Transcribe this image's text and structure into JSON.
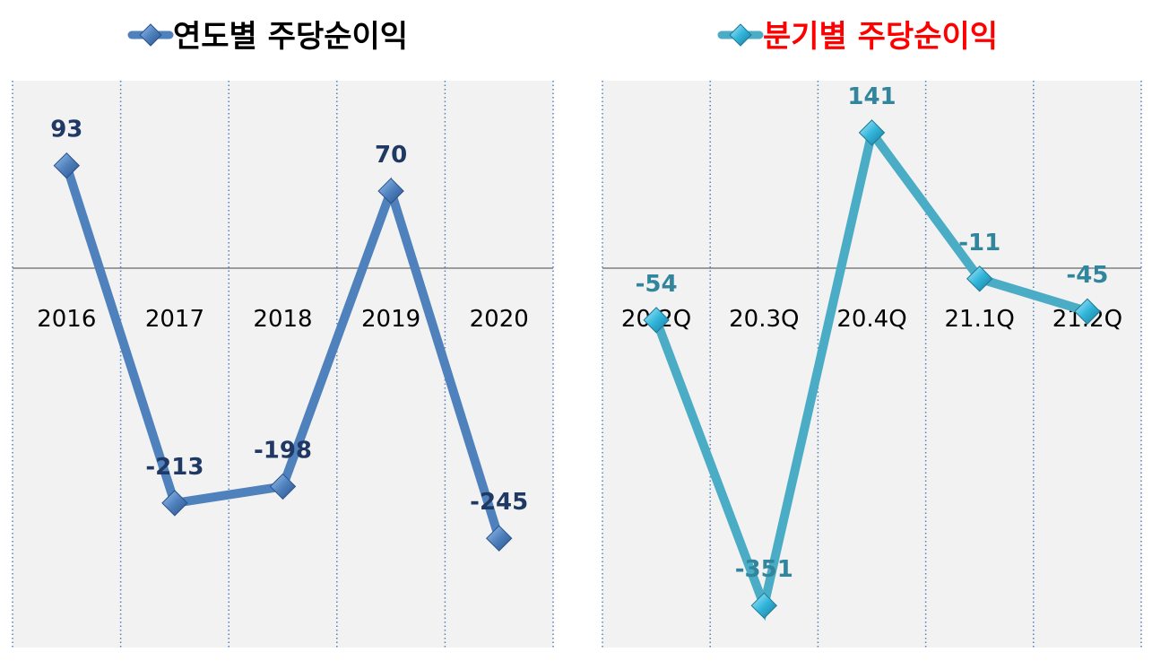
{
  "chart_data": [
    {
      "type": "line",
      "title": "연도별 주당순이익",
      "categories": [
        "2016",
        "2017",
        "2018",
        "2019",
        "2020"
      ],
      "series": [
        {
          "name": "연도별 주당순이익",
          "values": [
            93,
            -213,
            -198,
            70,
            -245
          ]
        }
      ],
      "data_labels": [
        "93",
        "-213",
        "-198",
        "70",
        "-245"
      ],
      "ylim": [
        -320,
        170
      ],
      "grid": "vertical-dotted",
      "legend_position": "top",
      "line_color": "#4F81BD",
      "marker_color": "#4F81BD",
      "label_color": "#1F3864",
      "title_color": "#000000"
    },
    {
      "type": "line",
      "title": "분기별 주당순이익",
      "categories": [
        "20.2Q",
        "20.3Q",
        "20.4Q",
        "21.1Q",
        "21.2Q"
      ],
      "series": [
        {
          "name": "분기별 주당순이익",
          "values": [
            -54,
            -351,
            141,
            -11,
            -45
          ]
        }
      ],
      "data_labels": [
        "-54",
        "-351",
        "141",
        "-11",
        "-45"
      ],
      "ylim": [
        -385,
        195
      ],
      "grid": "vertical-dotted",
      "legend_position": "top",
      "line_color": "#4BACC6",
      "marker_color": "#31B5DB",
      "label_color": "#31859C",
      "title_color": "#FF0000"
    }
  ]
}
